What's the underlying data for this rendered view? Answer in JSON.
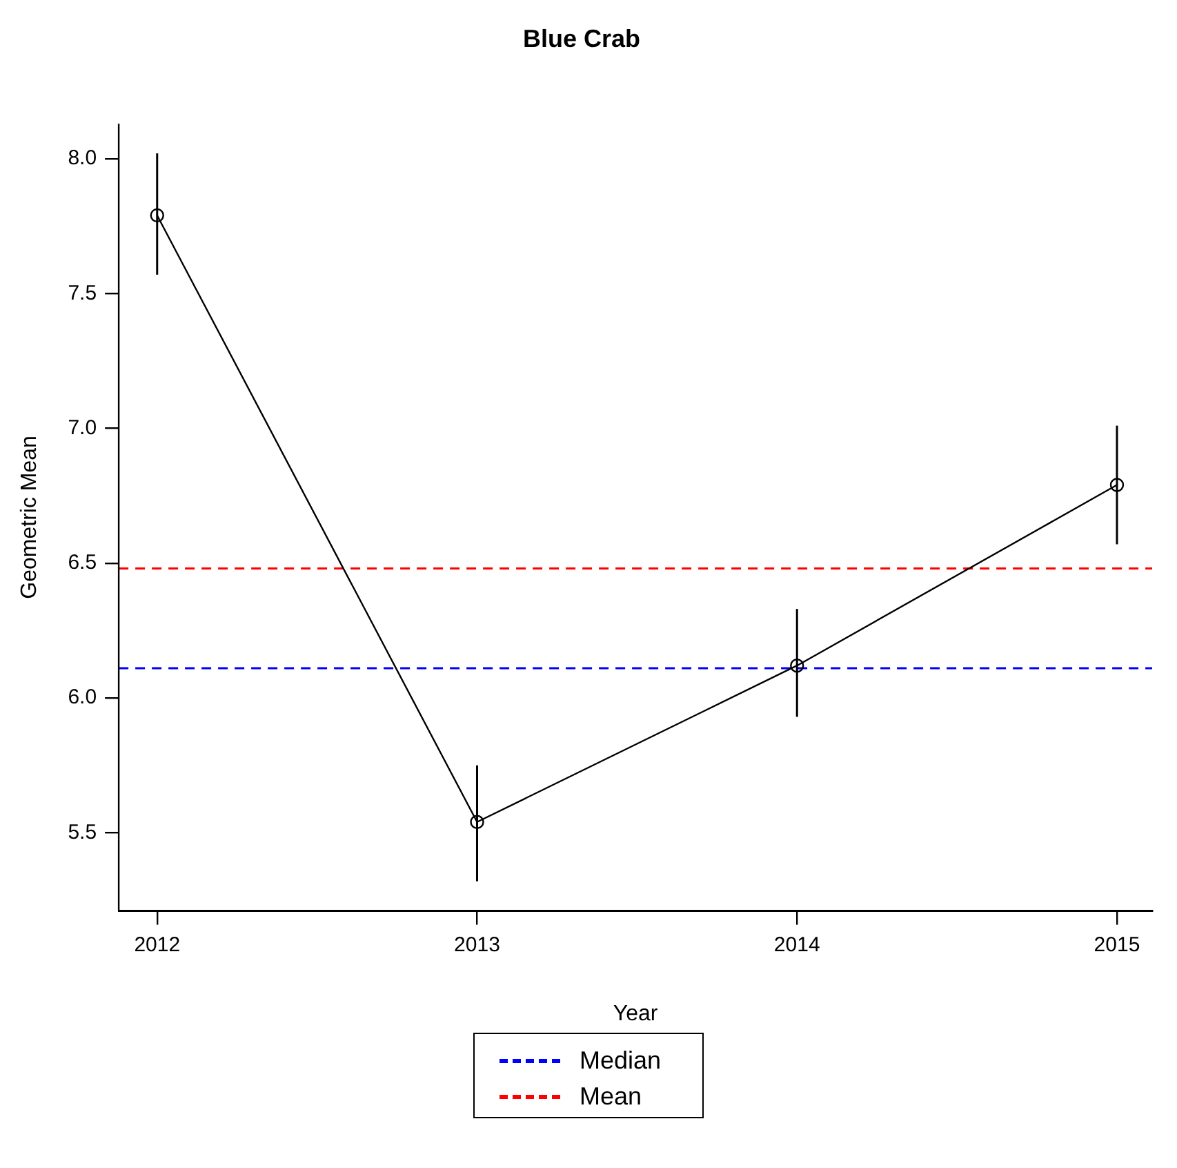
{
  "chart_data": {
    "type": "line",
    "title": "Blue Crab",
    "xlabel": "Year",
    "ylabel": "Geometric Mean",
    "x": [
      2012,
      2013,
      2014,
      2015
    ],
    "series": [
      {
        "color": "#000000",
        "values": [
          7.79,
          5.54,
          6.12,
          6.79
        ],
        "errors": [
          [
            7.57,
            8.02
          ],
          [
            5.32,
            5.75
          ],
          [
            5.93,
            6.33
          ],
          [
            6.57,
            7.01
          ]
        ]
      }
    ],
    "xlim": [
      2011.88,
      2015.11
    ],
    "xticks": [
      2012,
      2013,
      2014,
      2015
    ],
    "ylim": [
      5.21,
      8.13
    ],
    "yticks": [
      5.5,
      {
        "value": 6,
        "label": "6.0"
      },
      6.5,
      {
        "value": 7,
        "label": "7.0"
      },
      7.5,
      {
        "value": 8,
        "label": "8.0"
      }
    ],
    "ref_lines": [
      {
        "axis": "y",
        "value": 6.11,
        "label": "Median",
        "color": "#0000ff",
        "line_style": "dashed"
      },
      {
        "axis": "y",
        "value": 6.48,
        "label": "Mean",
        "color": "#ff0000",
        "line_style": "dashed"
      }
    ],
    "legend": "bottom",
    "marker": "circle",
    "line_style": "solid"
  }
}
